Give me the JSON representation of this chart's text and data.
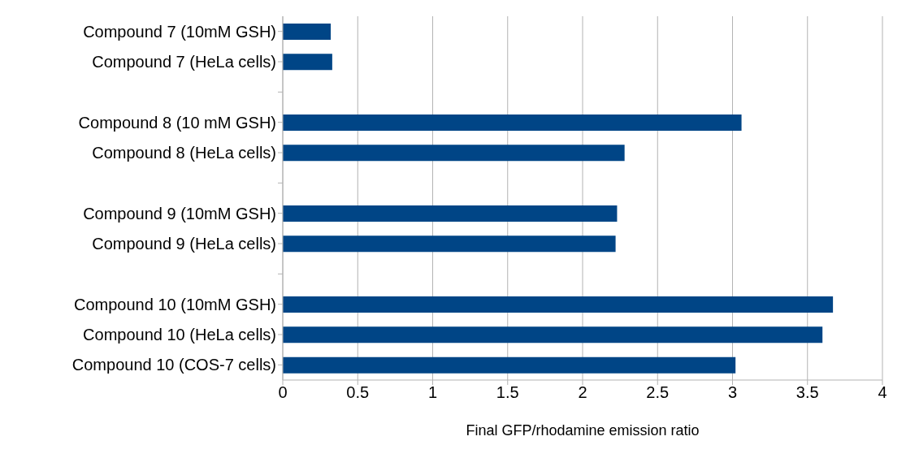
{
  "chart_data": {
    "type": "bar",
    "orientation": "horizontal",
    "xlabel": "Final GFP/rhodamine emission ratio",
    "categories": [
      "Compound 7 (10mM GSH)",
      "Compound 7 (HeLa cells)",
      null,
      "Compound 8 (10 mM GSH)",
      "Compound 8 (HeLa cells)",
      null,
      "Compound 9 (10mM GSH)",
      "Compound 9 (HeLa cells)",
      null,
      "Compound 10 (10mM GSH)",
      "Compound 10 (HeLa cells)",
      "Compound 10 (COS-7 cells)"
    ],
    "values": [
      0.32,
      0.33,
      null,
      3.06,
      2.28,
      null,
      2.23,
      2.22,
      null,
      3.67,
      3.6,
      3.02
    ],
    "color": "#004586",
    "xlim": [
      0,
      4
    ],
    "xticks": [
      0,
      0.5,
      1,
      1.5,
      2,
      2.5,
      3,
      3.5,
      4
    ],
    "grid": "x",
    "legend": false
  }
}
